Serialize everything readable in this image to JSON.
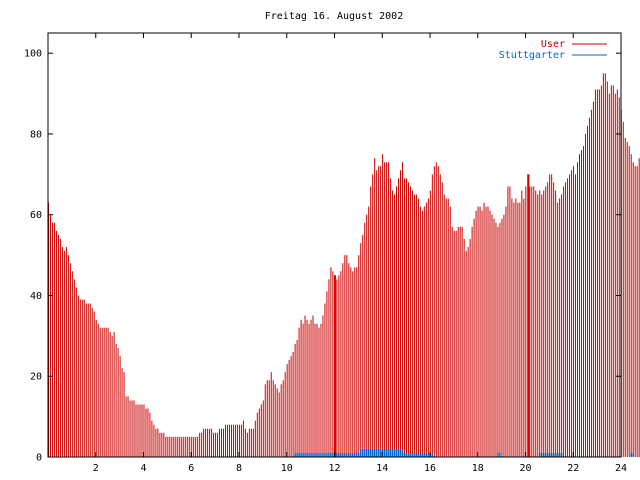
{
  "chart_data": {
    "type": "bar",
    "title": "Freitag 16. August 2002",
    "xlabel": "",
    "ylabel": "",
    "xlim": [
      0,
      24
    ],
    "ylim": [
      0,
      105
    ],
    "x_ticks": [
      "2",
      "4",
      "6",
      "8",
      "10",
      "12",
      "14",
      "16",
      "18",
      "20",
      "22",
      "24"
    ],
    "x_tick_values": [
      2,
      4,
      6,
      8,
      10,
      12,
      14,
      16,
      18,
      20,
      22,
      24
    ],
    "y_ticks": [
      "0",
      "20",
      "40",
      "60",
      "80",
      "100"
    ],
    "y_tick_values": [
      0,
      20,
      40,
      60,
      80,
      100
    ],
    "grid": false,
    "legend_position": "top-right",
    "x_step_hours": 0.0833,
    "series": [
      {
        "name": "User",
        "color": "#cc0000",
        "values": [
          63,
          60,
          58,
          58,
          56,
          55,
          54,
          52,
          51,
          52,
          50,
          48,
          46,
          44,
          42,
          40,
          39,
          39,
          39,
          38,
          38,
          38,
          37,
          36,
          34,
          33,
          32,
          32,
          32,
          32,
          32,
          31,
          30,
          31,
          28,
          27,
          25,
          22,
          21,
          15,
          15,
          14,
          14,
          14,
          13,
          13,
          13,
          13,
          13,
          12,
          12,
          11,
          9,
          8,
          7,
          7,
          6,
          6,
          6,
          5,
          5,
          5,
          5,
          5,
          5,
          5,
          5,
          5,
          5,
          5,
          5,
          5,
          5,
          5,
          5,
          5,
          6,
          6,
          7,
          7,
          7,
          7,
          7,
          6,
          6,
          6,
          7,
          7,
          7,
          8,
          8,
          8,
          8,
          8,
          8,
          8,
          8,
          8,
          9,
          7,
          6,
          7,
          7,
          7,
          9,
          11,
          12,
          13,
          14,
          18,
          19,
          19,
          21,
          19,
          18,
          17,
          16,
          18,
          19,
          21,
          23,
          24,
          25,
          26,
          28,
          29,
          32,
          34,
          33,
          35,
          34,
          33,
          34,
          35,
          33,
          33,
          32,
          33,
          35,
          38,
          41,
          44,
          47,
          46,
          43,
          44,
          45,
          46,
          48,
          50,
          50,
          48,
          47,
          46,
          47,
          47,
          50,
          53,
          55,
          58,
          60,
          62,
          67,
          70,
          74,
          71,
          72,
          72,
          75,
          73,
          73,
          73,
          69,
          66,
          65,
          67,
          69,
          71,
          73,
          69,
          69,
          68,
          67,
          66,
          65,
          65,
          64,
          62,
          61,
          62,
          63,
          64,
          66,
          70,
          72,
          73,
          72,
          70,
          68,
          65,
          64,
          64,
          62,
          57,
          56,
          56,
          57,
          57,
          57,
          54,
          51,
          52,
          54,
          57,
          59,
          61,
          62,
          62,
          61,
          63,
          62,
          62,
          61,
          60,
          59,
          58,
          57,
          58,
          59,
          60,
          62,
          67,
          67,
          64,
          63,
          64,
          63,
          63,
          66,
          64,
          67,
          70,
          67,
          67,
          67,
          66,
          65,
          66,
          65,
          66,
          67,
          68,
          70,
          70,
          68,
          66,
          63,
          64,
          65,
          67,
          68,
          69,
          70,
          71,
          72,
          70,
          73,
          75,
          76,
          77,
          80,
          82,
          84,
          86,
          88,
          91,
          91,
          91,
          92,
          95,
          95,
          93,
          90,
          92,
          92,
          90,
          91,
          89,
          86,
          83,
          79,
          78,
          77,
          75,
          73,
          72,
          72,
          74,
          75
        ]
      },
      {
        "name": "Stuttgarter",
        "color": "#0066cc",
        "values": [
          0,
          0,
          0,
          0,
          0,
          0,
          0,
          0,
          0,
          0,
          0,
          0,
          0,
          0,
          0,
          0,
          0,
          0,
          0,
          0,
          0,
          0,
          0,
          0,
          0,
          0,
          0,
          0,
          0,
          0,
          0,
          0,
          0,
          0,
          0,
          0,
          0,
          0,
          0,
          0,
          0,
          0,
          0,
          0,
          0,
          0,
          0,
          0,
          0,
          0,
          0,
          0,
          0,
          0,
          0,
          0,
          0,
          0,
          0,
          0,
          0,
          0,
          0,
          0,
          0,
          0,
          0,
          0,
          0,
          0,
          0,
          0,
          0,
          0,
          0,
          0,
          0,
          0,
          0,
          0,
          0,
          0,
          0,
          0,
          0,
          0,
          0,
          0,
          0,
          0,
          0,
          0,
          0,
          0,
          0,
          0,
          0,
          0,
          0,
          0,
          0,
          0,
          0,
          0,
          0,
          0,
          0,
          0,
          0,
          0,
          0,
          0,
          0,
          0,
          0,
          0,
          0,
          0,
          0,
          0,
          0,
          0,
          0,
          0,
          1,
          1,
          1,
          1,
          1,
          1,
          1,
          1,
          1,
          1,
          1,
          1,
          1,
          1,
          1,
          1,
          1,
          1,
          1,
          1,
          1,
          1,
          1,
          1,
          1,
          1,
          1,
          1,
          1,
          1,
          1,
          1,
          1,
          2,
          2,
          2,
          2,
          2,
          2,
          2,
          2,
          2,
          2,
          2,
          2,
          2,
          2,
          2,
          2,
          2,
          2,
          2,
          2,
          2,
          2,
          1,
          1,
          1,
          1,
          1,
          1,
          1,
          1,
          1,
          1,
          1,
          1,
          1,
          1,
          1,
          0,
          0,
          0,
          0,
          0,
          0,
          0,
          0,
          0,
          0,
          0,
          0,
          0,
          0,
          0,
          0,
          0,
          0,
          0,
          0,
          0,
          0,
          0,
          0,
          0,
          0,
          0,
          0,
          0,
          0,
          0,
          0,
          1,
          1,
          0,
          0,
          0,
          0,
          0,
          0,
          0,
          0,
          0,
          0,
          0,
          0,
          0,
          0,
          0,
          0,
          0,
          0,
          0,
          1,
          1,
          1,
          1,
          1,
          1,
          1,
          1,
          1,
          1,
          1,
          1,
          0,
          0,
          0,
          0,
          0,
          0,
          0,
          0,
          0,
          0,
          0,
          0,
          0,
          0,
          0,
          0,
          0,
          0,
          0,
          0,
          0,
          0,
          0,
          0,
          0,
          0,
          0,
          0,
          0,
          0,
          0,
          0,
          0,
          0,
          1,
          1,
          0,
          0,
          0,
          0,
          0,
          0,
          0,
          0,
          0,
          0,
          0,
          0,
          0,
          0,
          0,
          0,
          0,
          0,
          0,
          0,
          0,
          0
        ]
      }
    ],
    "highlight_bars": [
      {
        "x": 12.0,
        "value": 45,
        "color": "#dd0000"
      },
      {
        "x": 20.1,
        "value": 70,
        "color": "#dd0000"
      }
    ]
  }
}
